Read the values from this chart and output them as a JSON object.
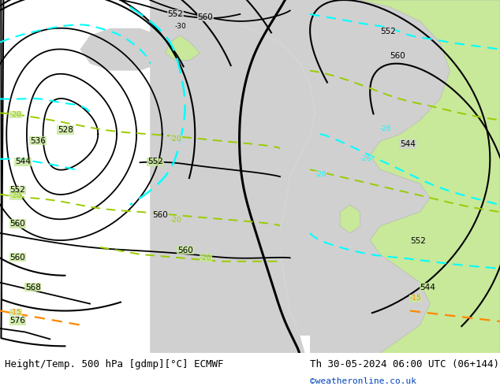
{
  "title_left": "Height/Temp. 500 hPa [gdmp][°C] ECMWF",
  "title_right": "Th 30-05-2024 06:00 UTC (06+144)",
  "credit": "©weatheronline.co.uk",
  "bg_color": "#ffffff",
  "land_color": "#c8e89a",
  "sea_color": "#d0d0d0",
  "fig_width": 6.34,
  "fig_height": 4.9,
  "dpi": 100,
  "footer_fontsize": 9,
  "credit_fontsize": 8,
  "credit_color": "#0044bb"
}
